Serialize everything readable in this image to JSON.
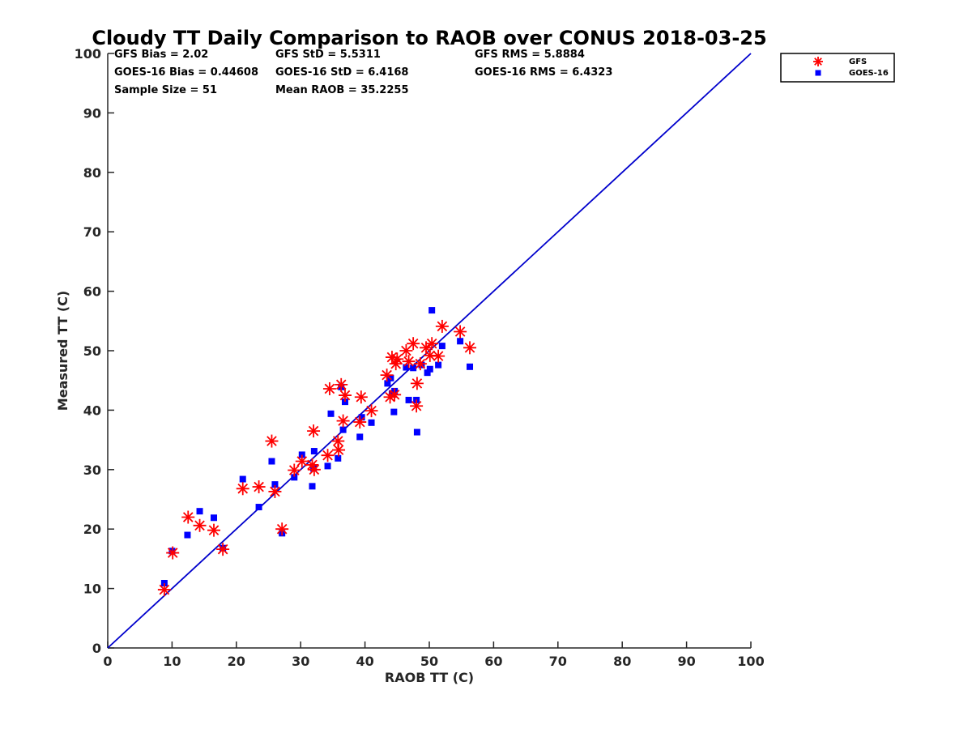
{
  "chart_data": {
    "type": "scatter",
    "title": "Cloudy TT Daily Comparison to RAOB over CONUS 2018-03-25",
    "xlabel": "RAOB TT (C)",
    "ylabel": "Measured TT (C)",
    "xlim": [
      0,
      100
    ],
    "ylim": [
      0,
      100
    ],
    "xticks": [
      "0",
      "10",
      "20",
      "30",
      "40",
      "50",
      "60",
      "70",
      "80",
      "90",
      "100"
    ],
    "yticks": [
      "0",
      "10",
      "20",
      "30",
      "40",
      "50",
      "60",
      "70",
      "80",
      "90",
      "100"
    ],
    "grid": false,
    "legend_position": "top-right, outside plot",
    "reference_line": {
      "x": [
        0,
        100
      ],
      "y": [
        0,
        100
      ],
      "color": "#0000cc"
    },
    "stats": [
      [
        "GFS Bias = 2.02",
        "GFS StD = 5.5311",
        "GFS RMS = 5.8884"
      ],
      [
        "GOES-16 Bias = 0.44608",
        "GOES-16 StD = 6.4168",
        "GOES-16 RMS = 6.4323"
      ],
      [
        "Sample Size = 51",
        "Mean RAOB = 35.2255",
        ""
      ]
    ],
    "series": [
      {
        "name": "GFS",
        "marker": "asterisk",
        "color": "#ff0000",
        "points": [
          [
            8.8,
            9.8
          ],
          [
            10.1,
            16.0
          ],
          [
            12.5,
            22.0
          ],
          [
            14.3,
            20.6
          ],
          [
            16.5,
            19.8
          ],
          [
            17.9,
            16.6
          ],
          [
            21.0,
            26.8
          ],
          [
            23.5,
            27.1
          ],
          [
            25.5,
            34.8
          ],
          [
            26.0,
            26.3
          ],
          [
            27.1,
            20.0
          ],
          [
            29.0,
            29.9
          ],
          [
            30.2,
            31.4
          ],
          [
            31.8,
            30.8
          ],
          [
            32.0,
            36.5
          ],
          [
            32.1,
            30.0
          ],
          [
            34.2,
            32.4
          ],
          [
            34.5,
            43.6
          ],
          [
            35.8,
            34.8
          ],
          [
            35.9,
            33.3
          ],
          [
            36.3,
            44.3
          ],
          [
            36.6,
            38.2
          ],
          [
            36.9,
            42.5
          ],
          [
            39.2,
            38.0
          ],
          [
            39.4,
            42.2
          ],
          [
            41.0,
            39.9
          ],
          [
            43.4,
            45.9
          ],
          [
            43.9,
            42.2
          ],
          [
            44.2,
            48.9
          ],
          [
            44.6,
            42.6
          ],
          [
            44.8,
            47.8
          ],
          [
            45.0,
            48.6
          ],
          [
            46.4,
            50.0
          ],
          [
            46.8,
            48.2
          ],
          [
            47.5,
            51.2
          ],
          [
            48.0,
            40.7
          ],
          [
            48.1,
            44.5
          ],
          [
            48.6,
            47.8
          ],
          [
            49.5,
            50.5
          ],
          [
            50.1,
            49.2
          ],
          [
            50.4,
            51.2
          ],
          [
            51.4,
            49.1
          ],
          [
            52.0,
            54.1
          ],
          [
            54.8,
            53.2
          ],
          [
            56.3,
            50.5
          ]
        ]
      },
      {
        "name": "GOES-16",
        "marker": "square",
        "color": "#0000ff",
        "points": [
          [
            8.8,
            10.9
          ],
          [
            10.0,
            16.3
          ],
          [
            12.4,
            19.0
          ],
          [
            14.3,
            23.0
          ],
          [
            16.5,
            21.9
          ],
          [
            17.9,
            16.8
          ],
          [
            21.0,
            28.4
          ],
          [
            23.5,
            23.7
          ],
          [
            25.5,
            31.4
          ],
          [
            26.0,
            27.5
          ],
          [
            27.1,
            19.3
          ],
          [
            29.0,
            28.7
          ],
          [
            30.2,
            32.5
          ],
          [
            31.8,
            27.2
          ],
          [
            32.0,
            30.2
          ],
          [
            32.1,
            33.1
          ],
          [
            34.2,
            30.6
          ],
          [
            34.7,
            39.4
          ],
          [
            35.8,
            31.9
          ],
          [
            36.3,
            43.9
          ],
          [
            36.6,
            36.7
          ],
          [
            36.9,
            41.4
          ],
          [
            39.2,
            35.5
          ],
          [
            39.5,
            38.8
          ],
          [
            41.0,
            37.9
          ],
          [
            43.5,
            44.5
          ],
          [
            44.0,
            45.4
          ],
          [
            44.2,
            42.8
          ],
          [
            44.5,
            39.7
          ],
          [
            44.6,
            43.2
          ],
          [
            46.4,
            47.2
          ],
          [
            46.8,
            41.7
          ],
          [
            47.5,
            47.1
          ],
          [
            48.0,
            41.7
          ],
          [
            48.1,
            36.3
          ],
          [
            48.8,
            47.6
          ],
          [
            49.7,
            46.3
          ],
          [
            50.1,
            46.9
          ],
          [
            50.4,
            56.8
          ],
          [
            51.4,
            47.6
          ],
          [
            52.0,
            50.8
          ],
          [
            54.8,
            51.6
          ],
          [
            56.3,
            47.3
          ]
        ]
      }
    ]
  }
}
